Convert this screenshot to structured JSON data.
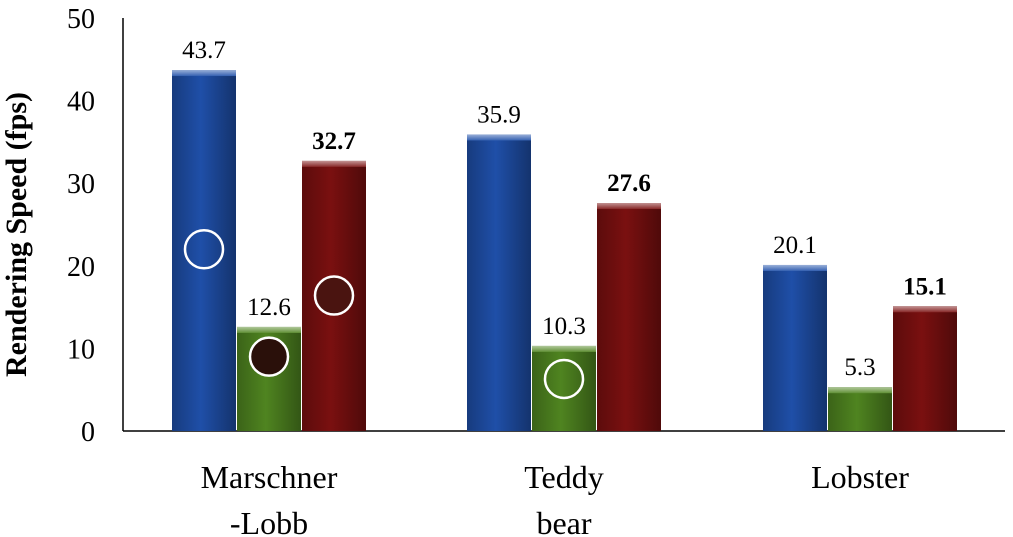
{
  "chart_data": {
    "type": "bar",
    "title": "",
    "xlabel": "",
    "ylabel": "Rendering Speed (fps)",
    "ylim": [
      0,
      50
    ],
    "yticks": [
      0,
      10,
      20,
      30,
      40,
      50
    ],
    "grid": false,
    "categories": [
      {
        "lines": [
          "Marschner",
          "-Lobb"
        ]
      },
      {
        "lines": [
          "Teddy",
          "bear"
        ]
      },
      {
        "lines": [
          "Lobster"
        ]
      }
    ],
    "series": [
      {
        "values": [
          43.7,
          35.9,
          20.1
        ],
        "labels": [
          "43.7",
          "35.9",
          "20.1"
        ],
        "color": "#1f4fa8",
        "bold_labels": false
      },
      {
        "values": [
          12.6,
          10.3,
          5.3
        ],
        "labels": [
          "12.6",
          "10.3",
          "5.3"
        ],
        "color": "#4f8420",
        "bold_labels": false
      },
      {
        "values": [
          32.7,
          27.6,
          15.1
        ],
        "labels": [
          "32.7",
          "27.6",
          "15.1"
        ],
        "color": "#7a1010",
        "bold_labels": true
      }
    ],
    "annotations": [
      {
        "type": "circle",
        "category": 0,
        "series": 0,
        "y": 22.0,
        "fill": "none"
      },
      {
        "type": "circle",
        "category": 0,
        "series": 2,
        "y": 16.4,
        "fill": "#4a1410"
      },
      {
        "type": "circle",
        "category": 0,
        "series": 1,
        "y": 9.0,
        "fill": "#2a100a"
      },
      {
        "type": "circle",
        "category": 1,
        "series": 1,
        "y": 6.3,
        "fill": "none"
      }
    ]
  }
}
